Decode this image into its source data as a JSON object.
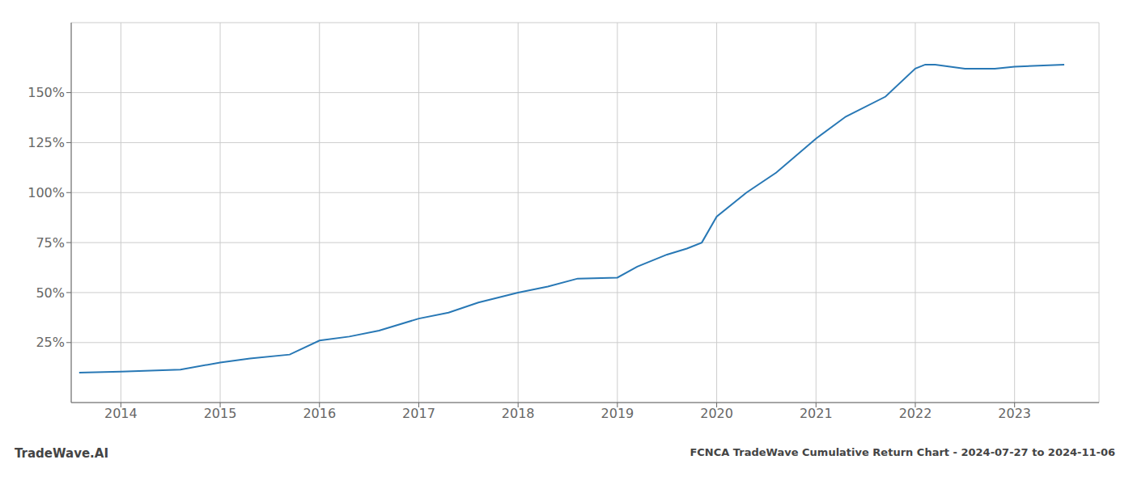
{
  "chart_data": {
    "type": "line",
    "title": "FCNCA TradeWave Cumulative Return Chart - 2024-07-27 to 2024-11-06",
    "annotations": [
      "TradeWave.AI"
    ],
    "x": [
      2013.58,
      2014.0,
      2014.3,
      2014.6,
      2015.0,
      2015.3,
      2015.7,
      2016.0,
      2016.3,
      2016.6,
      2017.0,
      2017.3,
      2017.6,
      2018.0,
      2018.3,
      2018.6,
      2019.0,
      2019.2,
      2019.5,
      2019.7,
      2019.85,
      2020.0,
      2020.3,
      2020.6,
      2021.0,
      2021.3,
      2021.7,
      2022.0,
      2022.1,
      2022.2,
      2022.5,
      2022.8,
      2023.0,
      2023.5
    ],
    "values": [
      10,
      10.5,
      11,
      11.5,
      15,
      17,
      19,
      26,
      28,
      31,
      37,
      40,
      45,
      50,
      53,
      57,
      57.5,
      63,
      69,
      72,
      75,
      88,
      100,
      110,
      127,
      138,
      148,
      162,
      164,
      164,
      162,
      162,
      163,
      164
    ],
    "color": "#2878b5",
    "xlim": [
      2013.5,
      2023.85
    ],
    "xticks": [
      2014,
      2015,
      2016,
      2017,
      2018,
      2019,
      2020,
      2021,
      2022,
      2023
    ],
    "ylim": [
      -5,
      185
    ],
    "yticks": [
      {
        "value": 25,
        "label": "25%"
      },
      {
        "value": 50,
        "label": "50%"
      },
      {
        "value": 75,
        "label": "75%"
      },
      {
        "value": 100,
        "label": "100%"
      },
      {
        "value": 125,
        "label": "125%"
      },
      {
        "value": 150,
        "label": "150%"
      }
    ],
    "grid": true
  }
}
